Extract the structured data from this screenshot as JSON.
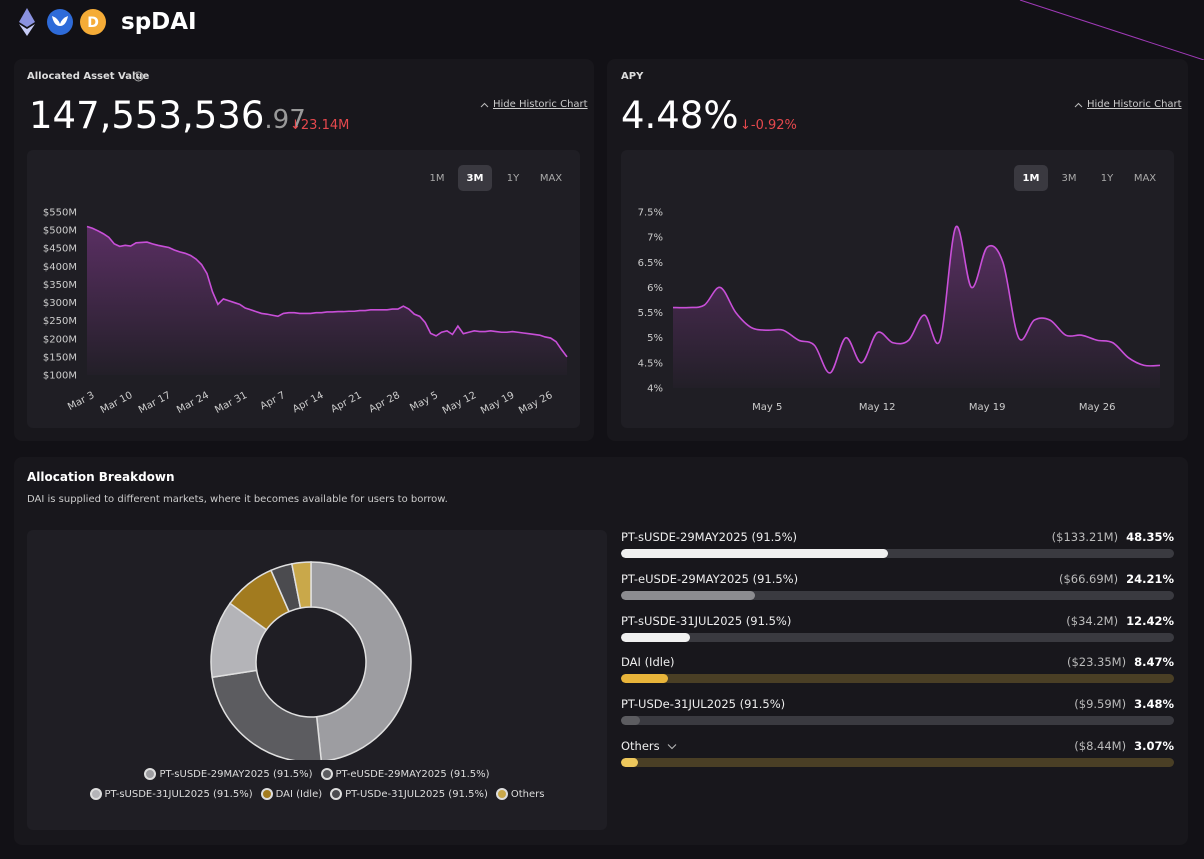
{
  "header": {
    "title": "spDAI"
  },
  "asset_panel": {
    "label": "Allocated Asset Value",
    "value": "147,553,536",
    "decimals": ".97",
    "change": "↓23.14M",
    "toggle": "Hide Historic Chart",
    "ranges": [
      "1M",
      "3M",
      "1Y",
      "MAX"
    ],
    "active_range": "3M",
    "chart": {
      "type": "line",
      "color": "#c84fd8",
      "smooth": false,
      "categories": [
        "Mar 3",
        null,
        null,
        null,
        null,
        null,
        null,
        "Mar 10",
        null,
        null,
        null,
        null,
        null,
        null,
        "Mar 17",
        null,
        null,
        null,
        null,
        null,
        null,
        "Mar 24",
        null,
        null,
        null,
        null,
        null,
        null,
        "Mar 31",
        null,
        null,
        null,
        null,
        null,
        null,
        "Apr 7",
        null,
        null,
        null,
        null,
        null,
        null,
        "Apr 14",
        null,
        null,
        null,
        null,
        null,
        null,
        "Apr 21",
        null,
        null,
        null,
        null,
        null,
        null,
        "Apr 28",
        null,
        null,
        null,
        null,
        null,
        null,
        "May 5",
        null,
        null,
        null,
        null,
        null,
        null,
        "May 12",
        null,
        null,
        null,
        null,
        null,
        null,
        "May 19",
        null,
        null,
        null,
        null,
        null,
        null,
        "May 26",
        null,
        null,
        null,
        null
      ],
      "values": [
        510,
        505,
        498,
        490,
        480,
        462,
        455,
        458,
        456,
        465,
        466,
        467,
        462,
        458,
        455,
        452,
        445,
        440,
        436,
        430,
        420,
        405,
        380,
        330,
        295,
        310,
        305,
        300,
        295,
        285,
        280,
        275,
        270,
        268,
        265,
        262,
        270,
        272,
        272,
        270,
        270,
        270,
        272,
        272,
        274,
        274,
        275,
        275,
        276,
        276,
        278,
        278,
        280,
        280,
        280,
        280,
        282,
        282,
        290,
        282,
        268,
        262,
        245,
        215,
        208,
        218,
        222,
        212,
        235,
        214,
        218,
        222,
        220,
        220,
        222,
        220,
        218,
        218,
        220,
        218,
        216,
        214,
        212,
        210,
        205,
        202,
        192,
        170,
        150
      ],
      "ylim": [
        100,
        550
      ],
      "yticks": [
        {
          "value": 100,
          "label": "$100M"
        },
        {
          "value": 150,
          "label": "$150M"
        },
        {
          "value": 200,
          "label": "$200M"
        },
        {
          "value": 250,
          "label": "$250M"
        },
        {
          "value": 300,
          "label": "$300M"
        },
        {
          "value": 350,
          "label": "$350M"
        },
        {
          "value": 400,
          "label": "$400M"
        },
        {
          "value": 450,
          "label": "$450M"
        },
        {
          "value": 500,
          "label": "$500M"
        },
        {
          "value": 550,
          "label": "$550M"
        }
      ]
    }
  },
  "apy_panel": {
    "label": "APY",
    "value": "4.48%",
    "change": "↓-0.92%",
    "toggle": "Hide Historic Chart",
    "ranges": [
      "1M",
      "3M",
      "1Y",
      "MAX"
    ],
    "active_range": "1M",
    "chart": {
      "type": "line",
      "color": "#c84fd8",
      "smooth": true,
      "categories": [
        null,
        null,
        null,
        null,
        null,
        null,
        "May 5",
        null,
        null,
        null,
        null,
        null,
        null,
        "May 12",
        null,
        null,
        null,
        null,
        null,
        null,
        "May 19",
        null,
        null,
        null,
        null,
        null,
        null,
        "May 26",
        null,
        null,
        null,
        null
      ],
      "values": [
        5.6,
        5.6,
        5.65,
        6.0,
        5.5,
        5.2,
        5.15,
        5.15,
        4.95,
        4.85,
        4.3,
        5.0,
        4.5,
        5.1,
        4.9,
        4.95,
        5.45,
        4.95,
        7.2,
        6.0,
        6.8,
        6.5,
        5.0,
        5.35,
        5.35,
        5.05,
        5.05,
        4.95,
        4.9,
        4.6,
        4.45,
        4.45
      ],
      "ylim": [
        4,
        7.5
      ],
      "yticks": [
        {
          "value": 4,
          "label": "4%"
        },
        {
          "value": 4.5,
          "label": "4.5%"
        },
        {
          "value": 5,
          "label": "5%"
        },
        {
          "value": 5.5,
          "label": "5.5%"
        },
        {
          "value": 6,
          "label": "6%"
        },
        {
          "value": 6.5,
          "label": "6.5%"
        },
        {
          "value": 7,
          "label": "7%"
        },
        {
          "value": 7.5,
          "label": "7.5%"
        }
      ]
    }
  },
  "allocation": {
    "title": "Allocation Breakdown",
    "description": "DAI is supplied to different markets, where it becomes available for users to borrow.",
    "type": "donut",
    "items": [
      {
        "name": "PT-sUSDE-29MAY2025 (91.5%)",
        "amount": "($133.21M)",
        "percent": 48.35,
        "percent_label": "48.35%",
        "color": "#9d9da1",
        "bar_color": "#f0f0f0",
        "track_color": "#3a3a40"
      },
      {
        "name": "PT-eUSDE-29MAY2025 (91.5%)",
        "amount": "($66.69M)",
        "percent": 24.21,
        "percent_label": "24.21%",
        "color": "#5c5c60",
        "bar_color": "#8c8c90",
        "track_color": "#3a3a40"
      },
      {
        "name": "PT-sUSDE-31JUL2025 (91.5%)",
        "amount": "($34.2M)",
        "percent": 12.42,
        "percent_label": "12.42%",
        "color": "#b4b4b8",
        "bar_color": "#f0f0f0",
        "track_color": "#3a3a40"
      },
      {
        "name": "DAI (Idle)",
        "amount": "($23.35M)",
        "percent": 8.47,
        "percent_label": "8.47%",
        "color": "#a27b1f",
        "bar_color": "#e8b43a",
        "track_color": "#4a3f25"
      },
      {
        "name": "PT-USDe-31JUL2025 (91.5%)",
        "amount": "($9.59M)",
        "percent": 3.48,
        "percent_label": "3.48%",
        "color": "#4b4b4f",
        "bar_color": "#5c5c60",
        "track_color": "#3a3a40"
      },
      {
        "name": "Others",
        "amount": "($8.44M)",
        "percent": 3.07,
        "percent_label": "3.07%",
        "color": "#c9a84a",
        "bar_color": "#edc75c",
        "track_color": "#4a3f25"
      }
    ]
  }
}
